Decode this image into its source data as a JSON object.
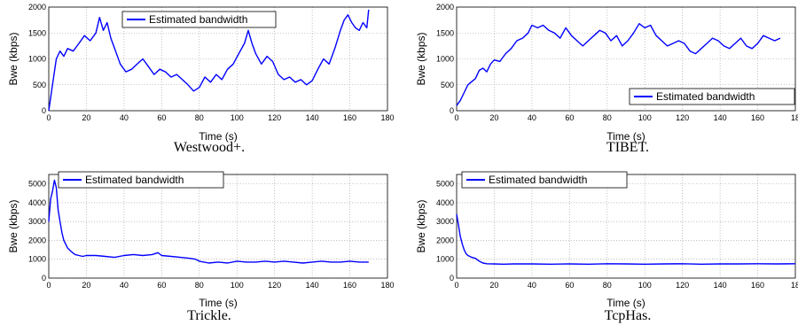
{
  "chart_data": [
    {
      "type": "line",
      "caption": "Westwood+.",
      "xlabel": "Time (s)",
      "ylabel": "Bwe (kbps)",
      "xlim": [
        0,
        180
      ],
      "ylim": [
        0,
        2000
      ],
      "xticks": [
        "0",
        "20",
        "40",
        "60",
        "80",
        "100",
        "120",
        "140",
        "160",
        "180"
      ],
      "yticks": [
        "0",
        "500",
        "1000",
        "1500",
        "2000"
      ],
      "grid": true,
      "legend": "top-center",
      "color": "#0000ff",
      "series": [
        {
          "name": "Estimated bandwidth",
          "x": [
            0,
            2,
            4,
            6,
            8,
            10,
            13,
            16,
            19,
            22,
            25,
            27,
            29,
            31,
            33,
            35,
            38,
            41,
            44,
            47,
            50,
            53,
            56,
            59,
            62,
            65,
            68,
            71,
            74,
            77,
            80,
            83,
            86,
            89,
            92,
            95,
            98,
            101,
            104,
            106,
            108,
            110,
            113,
            116,
            119,
            122,
            125,
            128,
            131,
            134,
            137,
            140,
            143,
            146,
            149,
            152,
            155,
            157,
            159,
            161,
            163,
            165,
            167,
            169,
            170
          ],
          "y": [
            0,
            500,
            1000,
            1150,
            1050,
            1200,
            1150,
            1300,
            1450,
            1350,
            1500,
            1800,
            1550,
            1700,
            1400,
            1200,
            900,
            750,
            800,
            900,
            1000,
            850,
            700,
            800,
            750,
            650,
            700,
            600,
            500,
            380,
            450,
            650,
            550,
            700,
            600,
            800,
            900,
            1100,
            1300,
            1550,
            1300,
            1100,
            900,
            1050,
            950,
            700,
            600,
            650,
            550,
            600,
            500,
            580,
            800,
            1000,
            900,
            1200,
            1550,
            1750,
            1850,
            1700,
            1600,
            1550,
            1700,
            1600,
            1950
          ]
        }
      ]
    },
    {
      "type": "line",
      "caption": "TIBET.",
      "xlabel": "Time (s)",
      "ylabel": "Bwe (kbps)",
      "xlim": [
        0,
        180
      ],
      "ylim": [
        0,
        2000
      ],
      "xticks": [
        "0",
        "20",
        "40",
        "60",
        "80",
        "100",
        "120",
        "140",
        "160",
        "18"
      ],
      "yticks": [
        "0",
        "500",
        "1000",
        "1500",
        "2000"
      ],
      "grid": true,
      "legend": "bottom-right",
      "color": "#0000ff",
      "series": [
        {
          "name": "Estimated bandwidth",
          "x": [
            0,
            2,
            4,
            6,
            8,
            10,
            12,
            14,
            16,
            18,
            20,
            23,
            26,
            29,
            32,
            35,
            38,
            40,
            43,
            46,
            49,
            52,
            55,
            58,
            61,
            64,
            67,
            70,
            73,
            76,
            79,
            82,
            85,
            88,
            91,
            94,
            97,
            100,
            103,
            106,
            109,
            112,
            115,
            118,
            121,
            124,
            127,
            130,
            133,
            136,
            139,
            142,
            145,
            148,
            151,
            154,
            157,
            160,
            163,
            166,
            169,
            172
          ],
          "y": [
            100,
            200,
            350,
            500,
            560,
            620,
            780,
            820,
            750,
            900,
            980,
            950,
            1100,
            1200,
            1350,
            1400,
            1500,
            1650,
            1600,
            1650,
            1550,
            1500,
            1400,
            1600,
            1450,
            1350,
            1250,
            1350,
            1450,
            1550,
            1500,
            1350,
            1450,
            1250,
            1350,
            1500,
            1680,
            1600,
            1650,
            1450,
            1350,
            1250,
            1300,
            1350,
            1300,
            1150,
            1100,
            1200,
            1300,
            1400,
            1350,
            1250,
            1200,
            1300,
            1400,
            1250,
            1200,
            1300,
            1450,
            1400,
            1350,
            1400
          ]
        }
      ]
    },
    {
      "type": "line",
      "caption": "Trickle.",
      "xlabel": "Time (s)",
      "ylabel": "Bwe (kbps)",
      "xlim": [
        0,
        180
      ],
      "ylim": [
        0,
        5500
      ],
      "xticks": [
        "0",
        "20",
        "40",
        "60",
        "80",
        "100",
        "120",
        "140",
        "160",
        "180"
      ],
      "yticks": [
        "0",
        "1000",
        "2000",
        "3000",
        "4000",
        "5000"
      ],
      "grid": true,
      "legend": "top-center",
      "color": "#0000ff",
      "series": [
        {
          "name": "Estimated bandwidth",
          "x": [
            0,
            1,
            2,
            3,
            4,
            5,
            6,
            7,
            8,
            9,
            10,
            12,
            14,
            16,
            18,
            20,
            25,
            30,
            35,
            40,
            45,
            50,
            55,
            58,
            60,
            65,
            70,
            75,
            78,
            80,
            85,
            90,
            95,
            100,
            105,
            110,
            115,
            120,
            125,
            130,
            135,
            140,
            145,
            150,
            155,
            160,
            165,
            170
          ],
          "y": [
            3000,
            4200,
            4600,
            5200,
            4800,
            3600,
            3000,
            2400,
            2000,
            1800,
            1600,
            1400,
            1250,
            1200,
            1150,
            1200,
            1200,
            1150,
            1100,
            1200,
            1250,
            1200,
            1250,
            1350,
            1200,
            1150,
            1100,
            1050,
            1000,
            900,
            800,
            850,
            800,
            900,
            850,
            850,
            900,
            850,
            900,
            850,
            800,
            850,
            900,
            850,
            850,
            900,
            850,
            850
          ]
        }
      ]
    },
    {
      "type": "line",
      "caption": "TcpHas.",
      "xlabel": "Time (s)",
      "ylabel": "Bwe (kbps)",
      "xlim": [
        0,
        180
      ],
      "ylim": [
        0,
        5500
      ],
      "xticks": [
        "0",
        "20",
        "40",
        "60",
        "80",
        "100",
        "120",
        "140",
        "160",
        "18"
      ],
      "yticks": [
        "0",
        "1000",
        "2000",
        "3000",
        "4000",
        "5000"
      ],
      "grid": true,
      "legend": "top-left",
      "color": "#0000ff",
      "series": [
        {
          "name": "Estimated bandwidth",
          "x": [
            0,
            1,
            2,
            3,
            4,
            5,
            6,
            7,
            8,
            10,
            12,
            14,
            16,
            20,
            25,
            30,
            40,
            50,
            60,
            70,
            80,
            90,
            100,
            110,
            120,
            130,
            140,
            150,
            160,
            170,
            180
          ],
          "y": [
            3400,
            2800,
            2200,
            1800,
            1500,
            1300,
            1200,
            1150,
            1100,
            1050,
            900,
            800,
            760,
            750,
            740,
            750,
            750,
            740,
            750,
            740,
            760,
            750,
            740,
            750,
            760,
            740,
            750,
            750,
            760,
            750,
            760
          ]
        }
      ]
    }
  ]
}
